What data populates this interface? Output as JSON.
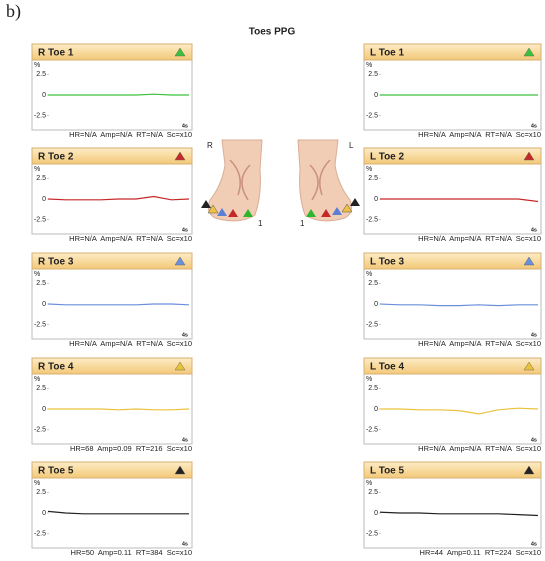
{
  "figure_label": "b)",
  "title": "Toes PPG",
  "foot_labels": {
    "right_side": "R",
    "left_side": "L",
    "right_toe": "1",
    "left_toe": "1"
  },
  "chart_data": [
    {
      "type": "line",
      "title": "R Toe 1",
      "y_label": "%",
      "x_label": "4s",
      "annotation": "HR=N/A  Amp=N/A  RT=N/A  Sc=x10",
      "color": "#3cc13c",
      "x": [
        0,
        0.5,
        1,
        1.5,
        2,
        2.5,
        3,
        3.5,
        4
      ],
      "values": [
        0,
        0,
        0,
        0,
        0,
        0,
        0.1,
        0,
        0
      ],
      "xlim": [
        0,
        4
      ],
      "ylim": [
        -4,
        4
      ],
      "yticks": [
        2.5,
        0,
        -2.5
      ]
    },
    {
      "type": "line",
      "title": "R Toe 2",
      "y_label": "%",
      "x_label": "4s",
      "annotation": "HR=N/A  Amp=N/A  RT=N/A  Sc=x10",
      "color": "#c62828",
      "x": [
        0,
        0.5,
        1,
        1.5,
        2,
        2.5,
        3,
        3.5,
        4
      ],
      "values": [
        0,
        -0.1,
        -0.1,
        -0.1,
        0,
        0,
        0.3,
        -0.1,
        0
      ],
      "xlim": [
        0,
        4
      ],
      "ylim": [
        -4,
        4
      ],
      "yticks": [
        2.5,
        0,
        -2.5
      ]
    },
    {
      "type": "line",
      "title": "R Toe 3",
      "y_label": "%",
      "x_label": "4s",
      "annotation": "HR=N/A  Amp=N/A  RT=N/A  Sc=x10",
      "color": "#6a8fdc",
      "x": [
        0,
        0.5,
        1,
        1.5,
        2,
        2.5,
        3,
        3.5,
        4
      ],
      "values": [
        0,
        -0.1,
        -0.1,
        -0.1,
        -0.1,
        -0.1,
        0,
        0,
        -0.1
      ],
      "xlim": [
        0,
        4
      ],
      "ylim": [
        -4,
        4
      ],
      "yticks": [
        2.5,
        0,
        -2.5
      ]
    },
    {
      "type": "line",
      "title": "R Toe 4",
      "y_label": "%",
      "x_label": "4s",
      "annotation": "HR=68  Amp=0.09  RT=216  Sc=x10",
      "color": "#e9c23c",
      "x": [
        0,
        0.5,
        1,
        1.5,
        2,
        2.5,
        3,
        3.5,
        4
      ],
      "values": [
        0,
        0,
        0,
        0,
        -0.1,
        0,
        -0.1,
        -0.1,
        0
      ],
      "xlim": [
        0,
        4
      ],
      "ylim": [
        -4,
        4
      ],
      "yticks": [
        2.5,
        0,
        -2.5
      ]
    },
    {
      "type": "line",
      "title": "R Toe 5",
      "y_label": "%",
      "x_label": "4s",
      "annotation": "HR=50  Amp=0.11  RT=384  Sc=x10",
      "color": "#222222",
      "x": [
        0,
        0.5,
        1,
        1.5,
        2,
        2.5,
        3,
        3.5,
        4
      ],
      "values": [
        0.2,
        0,
        -0.1,
        -0.1,
        -0.1,
        -0.1,
        -0.1,
        -0.1,
        -0.1
      ],
      "xlim": [
        0,
        4
      ],
      "ylim": [
        -4,
        4
      ],
      "yticks": [
        2.5,
        0,
        -2.5
      ]
    },
    {
      "type": "line",
      "title": "L Toe 1",
      "y_label": "%",
      "x_label": "4s",
      "annotation": "HR=N/A  Amp=N/A  RT=N/A  Sc=x10",
      "color": "#3cc13c",
      "x": [
        0,
        0.5,
        1,
        1.5,
        2,
        2.5,
        3,
        3.5,
        4
      ],
      "values": [
        0,
        0,
        0,
        0,
        0,
        0,
        0,
        0,
        0
      ],
      "xlim": [
        0,
        4
      ],
      "ylim": [
        -4,
        4
      ],
      "yticks": [
        2.5,
        0,
        -2.5
      ]
    },
    {
      "type": "line",
      "title": "L Toe 2",
      "y_label": "%",
      "x_label": "4s",
      "annotation": "HR=N/A  Amp=N/A  RT=N/A  Sc=x10",
      "color": "#c62828",
      "x": [
        0,
        0.5,
        1,
        1.5,
        2,
        2.5,
        3,
        3.5,
        4
      ],
      "values": [
        0,
        0,
        0,
        0,
        0,
        0,
        0,
        0,
        -0.3
      ],
      "xlim": [
        0,
        4
      ],
      "ylim": [
        -4,
        4
      ],
      "yticks": [
        2.5,
        0,
        -2.5
      ]
    },
    {
      "type": "line",
      "title": "L Toe 3",
      "y_label": "%",
      "x_label": "4s",
      "annotation": "HR=N/A  Amp=N/A  RT=N/A  Sc=x10",
      "color": "#6a8fdc",
      "x": [
        0,
        0.5,
        1,
        1.5,
        2,
        2.5,
        3,
        3.5,
        4
      ],
      "values": [
        0,
        -0.1,
        -0.1,
        -0.2,
        -0.2,
        -0.1,
        -0.2,
        -0.1,
        -0.1
      ],
      "xlim": [
        0,
        4
      ],
      "ylim": [
        -4,
        4
      ],
      "yticks": [
        2.5,
        0,
        -2.5
      ]
    },
    {
      "type": "line",
      "title": "L Toe 4",
      "y_label": "%",
      "x_label": "4s",
      "annotation": "HR=N/A  Amp=N/A  RT=N/A  Sc=x10",
      "color": "#e9c23c",
      "x": [
        0,
        0.5,
        1,
        1.5,
        2,
        2.5,
        3,
        3.5,
        4
      ],
      "values": [
        0,
        0,
        -0.1,
        -0.1,
        -0.2,
        -0.6,
        -0.1,
        0.1,
        0
      ],
      "xlim": [
        0,
        4
      ],
      "ylim": [
        -4,
        4
      ],
      "yticks": [
        2.5,
        0,
        -2.5
      ]
    },
    {
      "type": "line",
      "title": "L Toe 5",
      "y_label": "%",
      "x_label": "4s",
      "annotation": "HR=44  Amp=0.11  RT=224  Sc=x10",
      "color": "#222222",
      "x": [
        0,
        0.5,
        1,
        1.5,
        2,
        2.5,
        3,
        3.5,
        4
      ],
      "values": [
        0.1,
        0,
        0,
        -0.1,
        -0.1,
        -0.1,
        -0.1,
        -0.2,
        -0.3
      ],
      "xlim": [
        0,
        4
      ],
      "ylim": [
        -4,
        4
      ],
      "yticks": [
        2.5,
        0,
        -2.5
      ]
    }
  ]
}
